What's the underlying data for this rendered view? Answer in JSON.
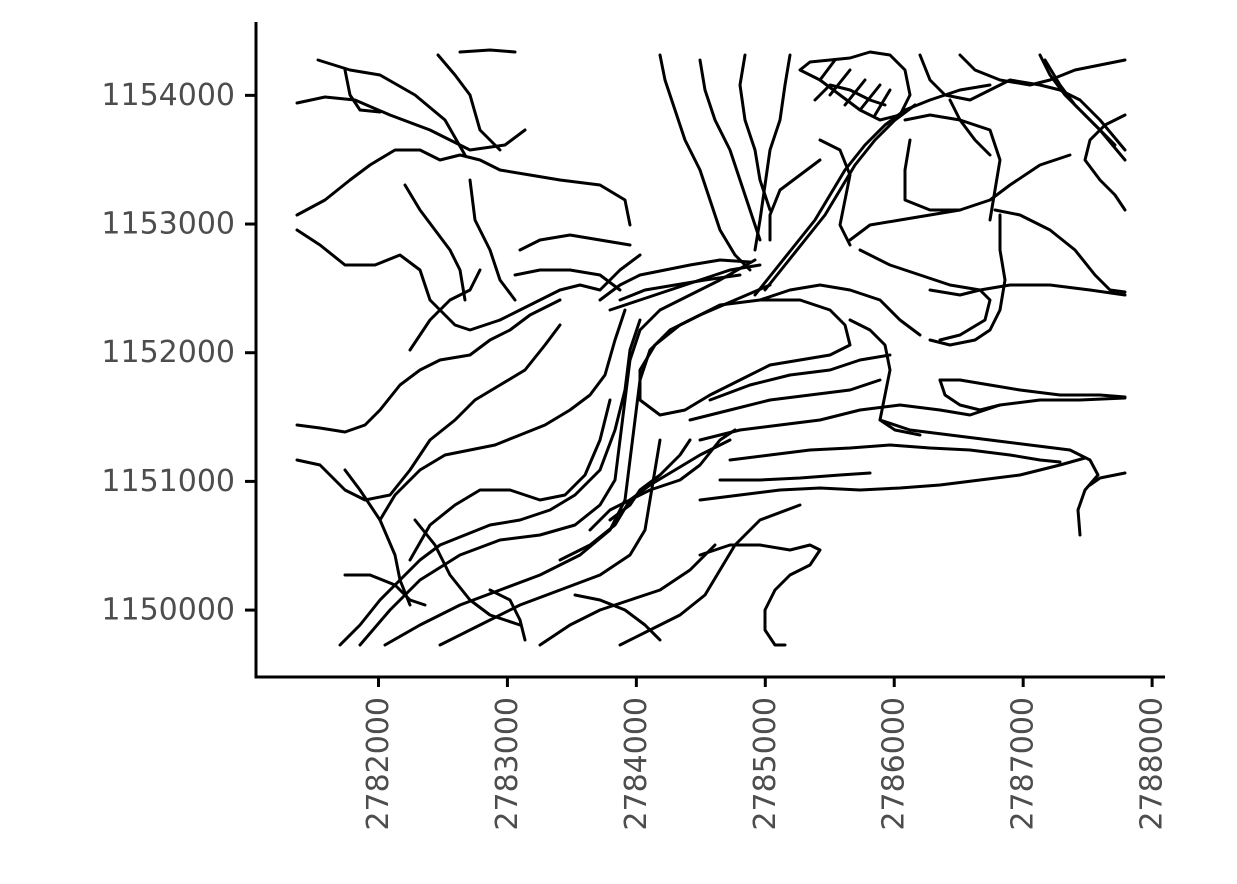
{
  "chart_data": {
    "type": "map",
    "geometry": "line network",
    "line_color": "#000000",
    "background": "#ffffff",
    "grid": false,
    "title": "",
    "xlabel": "",
    "ylabel": "",
    "xlim": [
      2781050,
      2788100
    ],
    "ylim": [
      1149480,
      1154570
    ],
    "data_extent": {
      "x": [
        2781300,
        2787800
      ],
      "y": [
        1149730,
        1154350
      ]
    },
    "x_ticks": [
      {
        "value": 2782000,
        "label": "2782000"
      },
      {
        "value": 2783000,
        "label": "2783000"
      },
      {
        "value": 2784000,
        "label": "2784000"
      },
      {
        "value": 2785000,
        "label": "2785000"
      },
      {
        "value": 2786000,
        "label": "2786000"
      },
      {
        "value": 2787000,
        "label": "2787000"
      },
      {
        "value": 2788000,
        "label": "2788000"
      }
    ],
    "y_ticks": [
      {
        "value": 1150000,
        "label": "1150000"
      },
      {
        "value": 1151000,
        "label": "1151000"
      },
      {
        "value": 1152000,
        "label": "1152000"
      },
      {
        "value": 1153000,
        "label": "1153000"
      },
      {
        "value": 1154000,
        "label": "1154000"
      }
    ]
  }
}
